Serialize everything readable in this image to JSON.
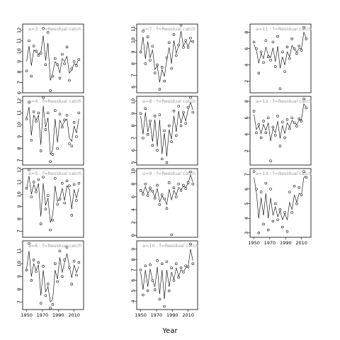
{
  "chart_data": {
    "type": "scatter",
    "title": "",
    "xlabel": "Year",
    "ylabel": "",
    "x_ticks": [
      1950,
      1970,
      1990,
      2010
    ],
    "xlim": [
      1945,
      2022
    ],
    "grid": false,
    "legend": "none",
    "panels": [
      {
        "id": "a=3",
        "label": "a=3  :  f=Residual catch",
        "col": 0,
        "row": 0,
        "ylim": [
          6,
          12.6
        ],
        "yticks": [
          6,
          7,
          8,
          9,
          10,
          11,
          12
        ],
        "years": [
          1950,
          1953,
          1956,
          1959,
          1962,
          1965,
          1968,
          1971,
          1974,
          1977,
          1980,
          1983,
          1986,
          1989,
          1992,
          1995,
          1998,
          2001,
          2004,
          2007,
          2010,
          2013,
          2016
        ],
        "points": [
          8.1,
          11.0,
          7.6,
          10.5,
          10.0,
          9.6,
          9.8,
          12.2,
          8.7,
          11.8,
          6.2,
          7.6,
          9.3,
          8.7,
          7.4,
          9.7,
          8.8,
          10.4,
          7.2,
          8.3,
          9.0,
          8.6,
          9.2
        ],
        "smooth": [
          9.0,
          10.5,
          8.6,
          10.1,
          10.0,
          9.7,
          9.9,
          11.5,
          9.1,
          10.8,
          7.2,
          7.9,
          9.0,
          8.7,
          7.9,
          9.3,
          9.0,
          9.5,
          7.9,
          8.2,
          8.8,
          8.7,
          9.3
        ]
      },
      {
        "id": "a=4",
        "label": "a=4  :  f=Residual catch",
        "col": 0,
        "row": 1,
        "ylim": [
          6.6,
          12.4
        ],
        "yticks": [
          7,
          8,
          9,
          10,
          11,
          12
        ],
        "years": [
          1950,
          1953,
          1956,
          1959,
          1962,
          1965,
          1968,
          1971,
          1974,
          1977,
          1980,
          1983,
          1986,
          1989,
          1992,
          1995,
          1998,
          2001,
          2004,
          2007,
          2010,
          2013,
          2016
        ],
        "points": [
          10.5,
          11.9,
          8.7,
          11.1,
          10.3,
          11.0,
          7.8,
          12.3,
          9.6,
          11.0,
          6.9,
          7.5,
          11.2,
          8.0,
          10.9,
          9.8,
          10.4,
          10.8,
          8.4,
          8.2,
          10.2,
          9.0,
          11.0
        ],
        "smooth": [
          10.6,
          11.5,
          9.1,
          10.8,
          10.4,
          10.8,
          8.3,
          11.6,
          9.8,
          10.6,
          7.5,
          7.9,
          10.5,
          8.5,
          10.4,
          9.9,
          10.3,
          10.5,
          8.9,
          8.6,
          9.9,
          9.3,
          10.5
        ]
      },
      {
        "id": "a=5",
        "label": "a=5  :  f=Residual catch",
        "col": 0,
        "row": 2,
        "ylim": [
          6.5,
          12.1
        ],
        "yticks": [
          7,
          8,
          9,
          10,
          11,
          12
        ],
        "years": [
          1950,
          1953,
          1956,
          1959,
          1962,
          1965,
          1968,
          1971,
          1974,
          1977,
          1980,
          1983,
          1986,
          1989,
          1992,
          1995,
          1998,
          2001,
          2004,
          2007,
          2010,
          2013,
          2016
        ],
        "points": [
          10.5,
          12.0,
          9.8,
          11.0,
          10.2,
          11.2,
          7.6,
          11.4,
          8.8,
          9.9,
          7.1,
          7.9,
          11.3,
          9.2,
          9.6,
          10.9,
          9.3,
          11.1,
          10.7,
          8.3,
          10.8,
          9.5,
          10.9
        ],
        "smooth": [
          10.4,
          11.5,
          10.0,
          10.8,
          10.3,
          10.9,
          8.2,
          10.9,
          9.1,
          9.7,
          7.7,
          8.3,
          10.7,
          9.4,
          9.7,
          10.5,
          9.5,
          10.7,
          10.4,
          8.8,
          10.4,
          9.7,
          10.5
        ]
      },
      {
        "id": "a=6",
        "label": "a=6  :  f=Residual catch",
        "col": 0,
        "row": 3,
        "ylim": [
          6.4,
          11.8
        ],
        "yticks": [
          7,
          8,
          9,
          10,
          11
        ],
        "years": [
          1950,
          1953,
          1956,
          1959,
          1962,
          1965,
          1968,
          1971,
          1974,
          1977,
          1980,
          1983,
          1986,
          1989,
          1992,
          1995,
          1998,
          2001,
          2004,
          2007,
          2010,
          2013,
          2016
        ],
        "points": [
          9.5,
          11.6,
          8.7,
          10.3,
          9.4,
          10.1,
          6.9,
          9.8,
          7.5,
          8.4,
          6.5,
          6.8,
          10.0,
          8.6,
          11.0,
          9.0,
          10.3,
          11.3,
          9.7,
          8.4,
          10.2,
          9.1,
          10.1
        ],
        "smooth": [
          9.6,
          11.0,
          9.0,
          10.0,
          9.5,
          9.9,
          7.5,
          9.5,
          7.8,
          8.2,
          7.0,
          7.2,
          9.5,
          8.8,
          10.5,
          9.3,
          10.1,
          10.8,
          9.8,
          8.9,
          9.9,
          9.3,
          9.8
        ]
      },
      {
        "id": "a=7",
        "label": "a=7  :  f=Residual catch",
        "col": 1,
        "row": 0,
        "ylim": [
          5.5,
          11.4
        ],
        "yticks": [
          6,
          7,
          8,
          9,
          10,
          11
        ],
        "years": [
          1950,
          1953,
          1956,
          1959,
          1962,
          1965,
          1968,
          1971,
          1974,
          1977,
          1980,
          1983,
          1986,
          1989,
          1992,
          1995,
          1998,
          2001,
          2004,
          2007,
          2010,
          2013,
          2016
        ],
        "points": [
          9.0,
          10.8,
          8.0,
          10.3,
          8.3,
          9.5,
          7.2,
          7.9,
          5.8,
          7.7,
          6.5,
          8.5,
          9.8,
          7.6,
          10.5,
          8.7,
          9.6,
          11.3,
          9.4,
          10.0,
          9.4,
          10.2,
          9.9
        ],
        "smooth": [
          9.0,
          10.3,
          8.4,
          9.9,
          8.5,
          9.2,
          7.5,
          7.8,
          6.4,
          7.5,
          6.9,
          8.3,
          9.4,
          8.0,
          10.0,
          8.9,
          9.5,
          10.8,
          9.5,
          9.9,
          9.5,
          10.0,
          9.8
        ]
      },
      {
        "id": "a=8",
        "label": "a=8  :  f=Residual catch",
        "col": 1,
        "row": 1,
        "ylim": [
          4.8,
          10.4
        ],
        "yticks": [
          5,
          6,
          7,
          8,
          9,
          10
        ],
        "years": [
          1950,
          1953,
          1956,
          1959,
          1962,
          1965,
          1968,
          1971,
          1974,
          1977,
          1980,
          1983,
          1986,
          1989,
          1992,
          1995,
          1998,
          2001,
          2004,
          2007,
          2010,
          2013,
          2016
        ],
        "points": [
          9.0,
          7.0,
          9.4,
          7.3,
          8.4,
          6.4,
          8.8,
          6.0,
          8.9,
          5.3,
          7.6,
          5.0,
          8.0,
          6.7,
          9.2,
          7.2,
          9.6,
          8.0,
          9.1,
          8.2,
          9.5,
          10.3,
          9.1
        ],
        "smooth": [
          8.8,
          7.3,
          9.1,
          7.5,
          8.3,
          6.7,
          8.5,
          6.3,
          8.5,
          5.7,
          7.4,
          5.5,
          7.7,
          6.9,
          8.8,
          7.5,
          9.2,
          8.2,
          9.0,
          8.4,
          9.3,
          9.9,
          9.3
        ]
      },
      {
        "id": "a=9",
        "label": "a=9  :  f=Residual catch",
        "col": 1,
        "row": 2,
        "ylim": [
          -0.3,
          10.4
        ],
        "yticks": [
          0,
          2,
          4,
          6,
          8,
          10
        ],
        "years": [
          1950,
          1953,
          1956,
          1959,
          1962,
          1965,
          1968,
          1971,
          1974,
          1977,
          1980,
          1983,
          1986,
          1989,
          1992,
          1995,
          1998,
          2001,
          2004,
          2007,
          2010,
          2013,
          2016
        ],
        "points": [
          7.0,
          6.4,
          8.0,
          6.2,
          7.4,
          6.9,
          5.8,
          7.8,
          4.8,
          6.3,
          5.7,
          4.2,
          8.2,
          0.1,
          7.4,
          6.0,
          8.0,
          7.0,
          7.8,
          7.3,
          8.2,
          9.9,
          8.0
        ],
        "smooth": [
          7.0,
          6.6,
          7.6,
          6.5,
          7.2,
          6.8,
          6.0,
          7.3,
          5.2,
          6.1,
          5.7,
          4.8,
          7.2,
          5.5,
          7.0,
          6.3,
          7.5,
          7.1,
          7.6,
          7.5,
          8.1,
          9.4,
          8.3
        ]
      },
      {
        "id": "a=10",
        "label": "a=10  :  f=Residual catch",
        "col": 1,
        "row": 3,
        "ylim": [
          3.2,
          9.8
        ],
        "yticks": [
          4,
          5,
          6,
          7,
          8,
          9
        ],
        "years": [
          1950,
          1953,
          1956,
          1959,
          1962,
          1965,
          1968,
          1971,
          1974,
          1977,
          1980,
          1983,
          1986,
          1989,
          1992,
          1995,
          1998,
          2001,
          2004,
          2007,
          2010,
          2013,
          2016
        ],
        "points": [
          7.0,
          4.6,
          7.4,
          5.0,
          7.5,
          6.0,
          5.1,
          7.9,
          4.2,
          7.6,
          3.5,
          7.8,
          5.0,
          7.2,
          6.0,
          7.6,
          6.3,
          7.2,
          6.8,
          7.4,
          7.3,
          9.5,
          7.6
        ],
        "smooth": [
          6.8,
          5.1,
          7.0,
          5.4,
          7.1,
          6.0,
          5.4,
          7.3,
          4.7,
          7.0,
          4.2,
          7.0,
          5.4,
          6.8,
          6.1,
          7.2,
          6.4,
          7.0,
          6.8,
          7.2,
          7.3,
          9.0,
          7.9
        ]
      },
      {
        "id": "a=11",
        "label": "a=11  :  f=Residual catch",
        "col": 2,
        "row": 0,
        "ylim": [
          0.6,
          9.0
        ],
        "yticks": [
          2,
          4,
          6,
          8
        ],
        "years": [
          1950,
          1953,
          1956,
          1959,
          1962,
          1965,
          1968,
          1971,
          1974,
          1977,
          1980,
          1983,
          1986,
          1989,
          1992,
          1995,
          1998,
          2001,
          2004,
          2007,
          2010,
          2013,
          2016
        ],
        "points": [
          6.8,
          6.0,
          3.0,
          5.6,
          4.3,
          7.0,
          5.0,
          4.6,
          6.8,
          3.8,
          7.5,
          1.1,
          5.6,
          3.2,
          6.2,
          4.8,
          7.2,
          6.0,
          5.4,
          6.3,
          5.8,
          8.6,
          7.2
        ],
        "smooth": [
          6.5,
          5.8,
          4.2,
          5.4,
          4.8,
          6.2,
          5.2,
          4.9,
          6.1,
          4.4,
          6.3,
          3.6,
          5.0,
          4.0,
          5.6,
          5.0,
          6.4,
          5.9,
          5.6,
          6.0,
          6.0,
          8.0,
          7.3
        ]
      },
      {
        "id": "a=12",
        "label": "a=12  :  f=Residual catch",
        "col": 2,
        "row": 1,
        "ylim": [
          0.3,
          8.6
        ],
        "yticks": [
          2,
          4,
          6,
          8
        ],
        "years": [
          1950,
          1953,
          1956,
          1959,
          1962,
          1965,
          1968,
          1971,
          1974,
          1977,
          1980,
          1983,
          1986,
          1989,
          1992,
          1995,
          1998,
          2001,
          2004,
          2007,
          2010,
          2013,
          2016
        ],
        "points": [
          6.8,
          4.2,
          5.2,
          3.6,
          5.6,
          4.2,
          6.0,
          0.8,
          4.9,
          3.9,
          6.2,
          2.6,
          5.5,
          3.6,
          5.8,
          4.7,
          6.0,
          5.4,
          5.0,
          5.9,
          5.6,
          8.3,
          7.2
        ],
        "smooth": [
          6.4,
          4.6,
          5.0,
          4.1,
          5.2,
          4.5,
          5.4,
          3.2,
          4.7,
          4.2,
          5.6,
          3.5,
          5.1,
          4.1,
          5.4,
          4.9,
          5.7,
          5.4,
          5.2,
          5.7,
          5.8,
          7.7,
          7.3
        ]
      },
      {
        "id": "a=13",
        "label": "a=13  :  f=Residual catch",
        "col": 2,
        "row": 2,
        "ylim": [
          2.7,
          7.4
        ],
        "yticks": [
          3,
          4,
          5,
          6,
          7
        ],
        "years": [
          1950,
          1953,
          1956,
          1959,
          1962,
          1965,
          1968,
          1971,
          1974,
          1977,
          1980,
          1983,
          1986,
          1989,
          1992,
          1995,
          1998,
          2001,
          2004,
          2007,
          2010,
          2013,
          2016
        ],
        "points": [
          7.2,
          6.0,
          3.0,
          5.8,
          3.6,
          6.4,
          3.2,
          6.0,
          3.8,
          5.0,
          3.9,
          4.6,
          3.4,
          4.4,
          3.1,
          5.8,
          4.4,
          6.2,
          5.0,
          6.1,
          5.6,
          7.2,
          6.8
        ],
        "smooth": [
          6.8,
          5.8,
          4.0,
          5.4,
          4.2,
          5.7,
          4.0,
          5.4,
          4.2,
          4.8,
          4.1,
          4.5,
          3.9,
          4.3,
          3.9,
          5.1,
          4.6,
          5.6,
          5.1,
          5.7,
          5.6,
          6.8,
          6.9
        ]
      }
    ]
  }
}
